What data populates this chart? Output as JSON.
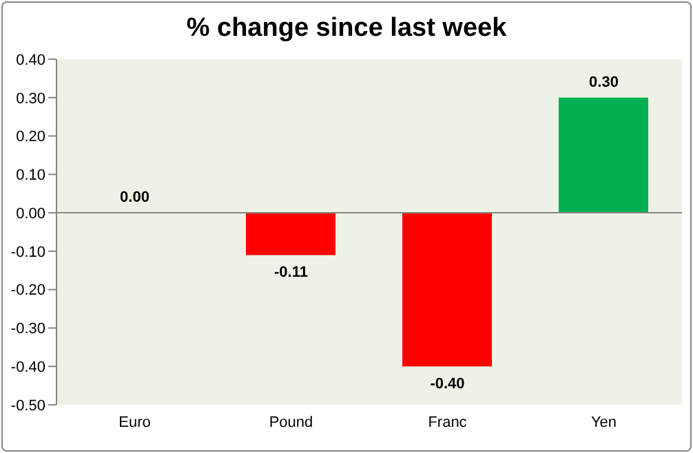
{
  "chart_data": {
    "type": "bar",
    "title": "% change since last week",
    "categories": [
      "Euro",
      "Pound",
      "Franc",
      "Yen"
    ],
    "values": [
      0,
      -0.11,
      -0.4,
      0.3
    ],
    "colors": [
      "#00b050",
      "#ff0000",
      "#ff0000",
      "#00b050"
    ],
    "value_labels": [
      "0.00",
      "-0.11",
      "-0.40",
      "0.30"
    ],
    "ylim": [
      -0.5,
      0.4
    ],
    "yticks": [
      {
        "value": 0.4,
        "label": "0.40"
      },
      {
        "value": 0.3,
        "label": "0.30"
      },
      {
        "value": 0.2,
        "label": "0.20"
      },
      {
        "value": 0.1,
        "label": "0.10"
      },
      {
        "value": 0,
        "label": "0.00"
      },
      {
        "value": -0.1,
        "label": "-0.10"
      },
      {
        "value": -0.2,
        "label": "-0.20"
      },
      {
        "value": -0.3,
        "label": "-0.30"
      },
      {
        "value": -0.4,
        "label": "-0.40"
      },
      {
        "value": -0.5,
        "label": "-0.50"
      }
    ],
    "ref_lines": [
      {
        "axis": "y",
        "value": 0,
        "color": "#868686"
      }
    ],
    "grid": false,
    "legend": false
  }
}
